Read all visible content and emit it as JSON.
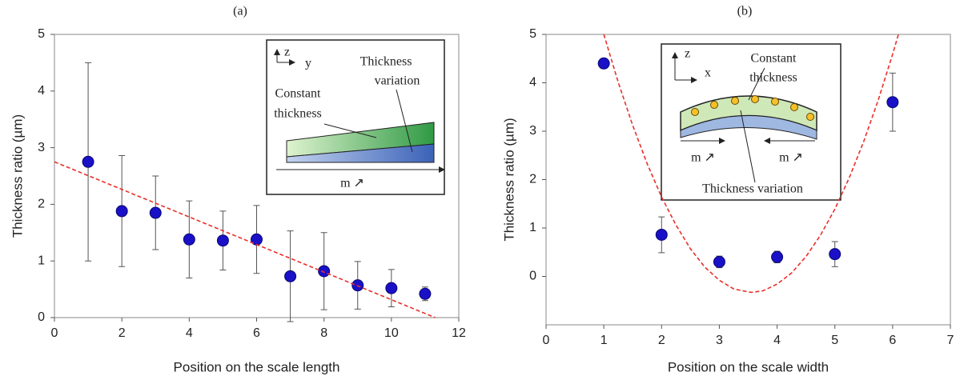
{
  "chart_data": [
    {
      "type": "scatter",
      "title": "(a)",
      "xlabel": "Position on the scale length",
      "ylabel": "Thickness ratio (µm)",
      "xlim": [
        0,
        12
      ],
      "ylim": [
        0,
        5
      ],
      "xticks": [
        0,
        2,
        4,
        6,
        8,
        10,
        12
      ],
      "yticks": [
        0,
        1,
        2,
        3,
        4,
        5
      ],
      "series": [
        {
          "kind": "points",
          "color": "#1a10c8",
          "x": [
            1,
            2,
            3,
            4,
            5,
            6,
            7,
            8,
            9,
            10,
            11
          ],
          "values": [
            2.75,
            1.88,
            1.85,
            1.38,
            1.36,
            1.38,
            0.73,
            0.82,
            0.57,
            0.52,
            0.42
          ],
          "errors": [
            1.75,
            0.98,
            0.65,
            0.68,
            0.52,
            0.6,
            0.8,
            0.68,
            0.42,
            0.33,
            0.12
          ]
        },
        {
          "kind": "fit",
          "color": "#e8302a",
          "x": [
            0,
            11.3
          ],
          "values": [
            2.75,
            0
          ]
        }
      ],
      "inset_labels": [
        "z",
        "y",
        "Thickness",
        "variation",
        "Constant",
        "thickness",
        "m ↗"
      ]
    },
    {
      "type": "scatter",
      "title": "(b)",
      "xlabel": "Position on the scale width",
      "ylabel": "Thickness ratio (µm)",
      "xlim": [
        0,
        7
      ],
      "ylim": [
        -1,
        5
      ],
      "xticks": [
        0,
        1,
        2,
        3,
        4,
        5,
        6,
        7
      ],
      "yticks": [
        0,
        1,
        2,
        3,
        4,
        5
      ],
      "series": [
        {
          "kind": "points",
          "color": "#1a10c8",
          "x": [
            1,
            2,
            3,
            4,
            5,
            6
          ],
          "values": [
            4.4,
            0.86,
            0.3,
            0.4,
            0.46,
            3.6
          ],
          "errors": [
            0.05,
            0.37,
            0.12,
            0.12,
            0.26,
            0.6
          ]
        },
        {
          "kind": "fit",
          "color": "#e8302a",
          "x": [
            1,
            1.25,
            1.5,
            1.75,
            2,
            2.25,
            2.5,
            2.75,
            3,
            3.25,
            3.55,
            3.75,
            4,
            4.25,
            4.5,
            4.75,
            5,
            5.25,
            5.5,
            5.75,
            6,
            6.1
          ],
          "values": [
            5,
            4.01,
            3.12,
            2.33,
            1.64,
            1.06,
            0.57,
            0.19,
            -0.08,
            -0.26,
            -0.33,
            -0.3,
            -0.16,
            0.07,
            0.41,
            0.85,
            1.39,
            2.04,
            2.79,
            3.64,
            4.59,
            5
          ]
        }
      ],
      "inset_labels": [
        "z",
        "x",
        "Constant",
        "thickness",
        "m ↗",
        "m ↗",
        "Thickness variation"
      ]
    }
  ]
}
